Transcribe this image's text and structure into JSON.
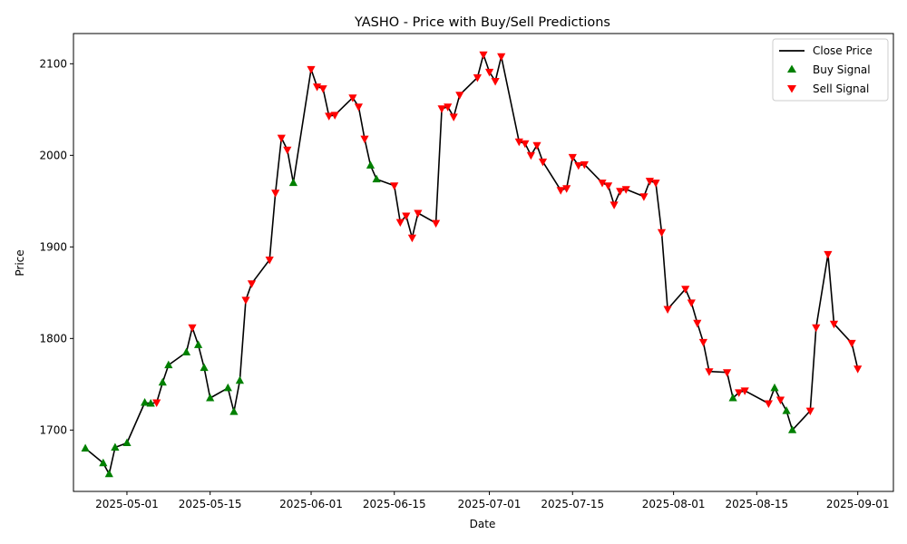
{
  "chart_data": {
    "type": "line",
    "title": "YASHO - Price with Buy/Sell Predictions",
    "xlabel": "Date",
    "ylabel": "Price",
    "xlim": [
      "2025-04-22",
      "2025-09-07"
    ],
    "ylim": [
      1633,
      2133
    ],
    "x_ticks": [
      "2025-05-01",
      "2025-05-15",
      "2025-06-01",
      "2025-06-15",
      "2025-07-01",
      "2025-07-15",
      "2025-08-01",
      "2025-08-15",
      "2025-09-01"
    ],
    "y_ticks": [
      1700,
      1800,
      1900,
      2000,
      2100
    ],
    "grid": false,
    "legend_position": "top-right",
    "series": [
      {
        "name": "Close Price",
        "kind": "line",
        "color": "#000000",
        "points": [
          [
            "2025-04-24",
            1680
          ],
          [
            "2025-04-27",
            1664
          ],
          [
            "2025-04-28",
            1652
          ],
          [
            "2025-04-29",
            1681
          ],
          [
            "2025-05-01",
            1686
          ],
          [
            "2025-05-04",
            1730
          ],
          [
            "2025-05-05",
            1729
          ],
          [
            "2025-05-06",
            1730
          ],
          [
            "2025-05-07",
            1752
          ],
          [
            "2025-05-08",
            1771
          ],
          [
            "2025-05-11",
            1785
          ],
          [
            "2025-05-12",
            1812
          ],
          [
            "2025-05-13",
            1793
          ],
          [
            "2025-05-14",
            1768
          ],
          [
            "2025-05-15",
            1735
          ],
          [
            "2025-05-18",
            1746
          ],
          [
            "2025-05-19",
            1720
          ],
          [
            "2025-05-20",
            1754
          ],
          [
            "2025-05-21",
            1842
          ],
          [
            "2025-05-22",
            1860
          ],
          [
            "2025-05-25",
            1886
          ],
          [
            "2025-05-26",
            1959
          ],
          [
            "2025-05-27",
            2019
          ],
          [
            "2025-05-28",
            2006
          ],
          [
            "2025-05-29",
            1970
          ],
          [
            "2025-06-01",
            2094
          ],
          [
            "2025-06-02",
            2075
          ],
          [
            "2025-06-03",
            2073
          ],
          [
            "2025-06-04",
            2043
          ],
          [
            "2025-06-05",
            2044
          ],
          [
            "2025-06-08",
            2063
          ],
          [
            "2025-06-09",
            2053
          ],
          [
            "2025-06-10",
            2018
          ],
          [
            "2025-06-11",
            1989
          ],
          [
            "2025-06-12",
            1974
          ],
          [
            "2025-06-15",
            1967
          ],
          [
            "2025-06-16",
            1927
          ],
          [
            "2025-06-17",
            1934
          ],
          [
            "2025-06-18",
            1910
          ],
          [
            "2025-06-19",
            1937
          ],
          [
            "2025-06-22",
            1926
          ],
          [
            "2025-06-23",
            2051
          ],
          [
            "2025-06-24",
            2053
          ],
          [
            "2025-06-25",
            2042
          ],
          [
            "2025-06-26",
            2066
          ],
          [
            "2025-06-29",
            2085
          ],
          [
            "2025-06-30",
            2110
          ],
          [
            "2025-07-01",
            2091
          ],
          [
            "2025-07-02",
            2081
          ],
          [
            "2025-07-03",
            2108
          ],
          [
            "2025-07-06",
            2015
          ],
          [
            "2025-07-07",
            2013
          ],
          [
            "2025-07-08",
            2000
          ],
          [
            "2025-07-09",
            2011
          ],
          [
            "2025-07-10",
            1993
          ],
          [
            "2025-07-13",
            1962
          ],
          [
            "2025-07-14",
            1964
          ],
          [
            "2025-07-15",
            1998
          ],
          [
            "2025-07-16",
            1989
          ],
          [
            "2025-07-17",
            1990
          ],
          [
            "2025-07-20",
            1970
          ],
          [
            "2025-07-21",
            1967
          ],
          [
            "2025-07-22",
            1946
          ],
          [
            "2025-07-23",
            1961
          ],
          [
            "2025-07-24",
            1963
          ],
          [
            "2025-07-27",
            1955
          ],
          [
            "2025-07-28",
            1972
          ],
          [
            "2025-07-29",
            1970
          ],
          [
            "2025-07-30",
            1916
          ],
          [
            "2025-07-31",
            1832
          ],
          [
            "2025-08-03",
            1854
          ],
          [
            "2025-08-04",
            1839
          ],
          [
            "2025-08-05",
            1817
          ],
          [
            "2025-08-06",
            1796
          ],
          [
            "2025-08-07",
            1764
          ],
          [
            "2025-08-10",
            1763
          ],
          [
            "2025-08-11",
            1735
          ],
          [
            "2025-08-12",
            1741
          ],
          [
            "2025-08-13",
            1743
          ],
          [
            "2025-08-17",
            1729
          ],
          [
            "2025-08-18",
            1746
          ],
          [
            "2025-08-19",
            1733
          ],
          [
            "2025-08-20",
            1721
          ],
          [
            "2025-08-21",
            1700
          ],
          [
            "2025-08-24",
            1721
          ],
          [
            "2025-08-25",
            1812
          ],
          [
            "2025-08-27",
            1892
          ],
          [
            "2025-08-28",
            1816
          ],
          [
            "2025-08-31",
            1795
          ],
          [
            "2025-09-01",
            1767
          ]
        ]
      },
      {
        "name": "Buy Signal",
        "kind": "scatter",
        "marker": "triangle-up",
        "color": "#008000",
        "points": [
          [
            "2025-04-24",
            1680
          ],
          [
            "2025-04-27",
            1664
          ],
          [
            "2025-04-28",
            1652
          ],
          [
            "2025-04-29",
            1681
          ],
          [
            "2025-05-01",
            1686
          ],
          [
            "2025-05-04",
            1730
          ],
          [
            "2025-05-05",
            1729
          ],
          [
            "2025-05-07",
            1752
          ],
          [
            "2025-05-08",
            1771
          ],
          [
            "2025-05-11",
            1785
          ],
          [
            "2025-05-13",
            1793
          ],
          [
            "2025-05-14",
            1768
          ],
          [
            "2025-05-15",
            1735
          ],
          [
            "2025-05-18",
            1746
          ],
          [
            "2025-05-19",
            1720
          ],
          [
            "2025-05-20",
            1754
          ],
          [
            "2025-05-29",
            1970
          ],
          [
            "2025-06-11",
            1989
          ],
          [
            "2025-06-12",
            1974
          ],
          [
            "2025-08-11",
            1735
          ],
          [
            "2025-08-18",
            1746
          ],
          [
            "2025-08-20",
            1721
          ],
          [
            "2025-08-21",
            1700
          ]
        ]
      },
      {
        "name": "Sell Signal",
        "kind": "scatter",
        "marker": "triangle-down",
        "color": "#ff0000",
        "points": [
          [
            "2025-05-06",
            1730
          ],
          [
            "2025-05-12",
            1812
          ],
          [
            "2025-05-21",
            1842
          ],
          [
            "2025-05-22",
            1860
          ],
          [
            "2025-05-25",
            1886
          ],
          [
            "2025-05-26",
            1959
          ],
          [
            "2025-05-27",
            2019
          ],
          [
            "2025-05-28",
            2006
          ],
          [
            "2025-06-01",
            2094
          ],
          [
            "2025-06-02",
            2075
          ],
          [
            "2025-06-03",
            2073
          ],
          [
            "2025-06-04",
            2043
          ],
          [
            "2025-06-05",
            2044
          ],
          [
            "2025-06-08",
            2063
          ],
          [
            "2025-06-09",
            2053
          ],
          [
            "2025-06-10",
            2018
          ],
          [
            "2025-06-15",
            1967
          ],
          [
            "2025-06-16",
            1927
          ],
          [
            "2025-06-17",
            1934
          ],
          [
            "2025-06-18",
            1910
          ],
          [
            "2025-06-19",
            1937
          ],
          [
            "2025-06-22",
            1926
          ],
          [
            "2025-06-23",
            2051
          ],
          [
            "2025-06-24",
            2053
          ],
          [
            "2025-06-25",
            2042
          ],
          [
            "2025-06-26",
            2066
          ],
          [
            "2025-06-29",
            2085
          ],
          [
            "2025-06-30",
            2110
          ],
          [
            "2025-07-01",
            2091
          ],
          [
            "2025-07-02",
            2081
          ],
          [
            "2025-07-03",
            2108
          ],
          [
            "2025-07-06",
            2015
          ],
          [
            "2025-07-07",
            2013
          ],
          [
            "2025-07-08",
            2000
          ],
          [
            "2025-07-09",
            2011
          ],
          [
            "2025-07-10",
            1993
          ],
          [
            "2025-07-13",
            1962
          ],
          [
            "2025-07-14",
            1964
          ],
          [
            "2025-07-15",
            1998
          ],
          [
            "2025-07-16",
            1989
          ],
          [
            "2025-07-17",
            1990
          ],
          [
            "2025-07-20",
            1970
          ],
          [
            "2025-07-21",
            1967
          ],
          [
            "2025-07-22",
            1946
          ],
          [
            "2025-07-23",
            1961
          ],
          [
            "2025-07-24",
            1963
          ],
          [
            "2025-07-27",
            1955
          ],
          [
            "2025-07-28",
            1972
          ],
          [
            "2025-07-29",
            1970
          ],
          [
            "2025-07-30",
            1916
          ],
          [
            "2025-07-31",
            1832
          ],
          [
            "2025-08-03",
            1854
          ],
          [
            "2025-08-04",
            1839
          ],
          [
            "2025-08-05",
            1817
          ],
          [
            "2025-08-06",
            1796
          ],
          [
            "2025-08-07",
            1764
          ],
          [
            "2025-08-10",
            1763
          ],
          [
            "2025-08-12",
            1741
          ],
          [
            "2025-08-13",
            1743
          ],
          [
            "2025-08-17",
            1729
          ],
          [
            "2025-08-19",
            1733
          ],
          [
            "2025-08-24",
            1721
          ],
          [
            "2025-08-25",
            1812
          ],
          [
            "2025-08-27",
            1892
          ],
          [
            "2025-08-28",
            1816
          ],
          [
            "2025-08-31",
            1795
          ],
          [
            "2025-09-01",
            1767
          ]
        ]
      }
    ]
  }
}
